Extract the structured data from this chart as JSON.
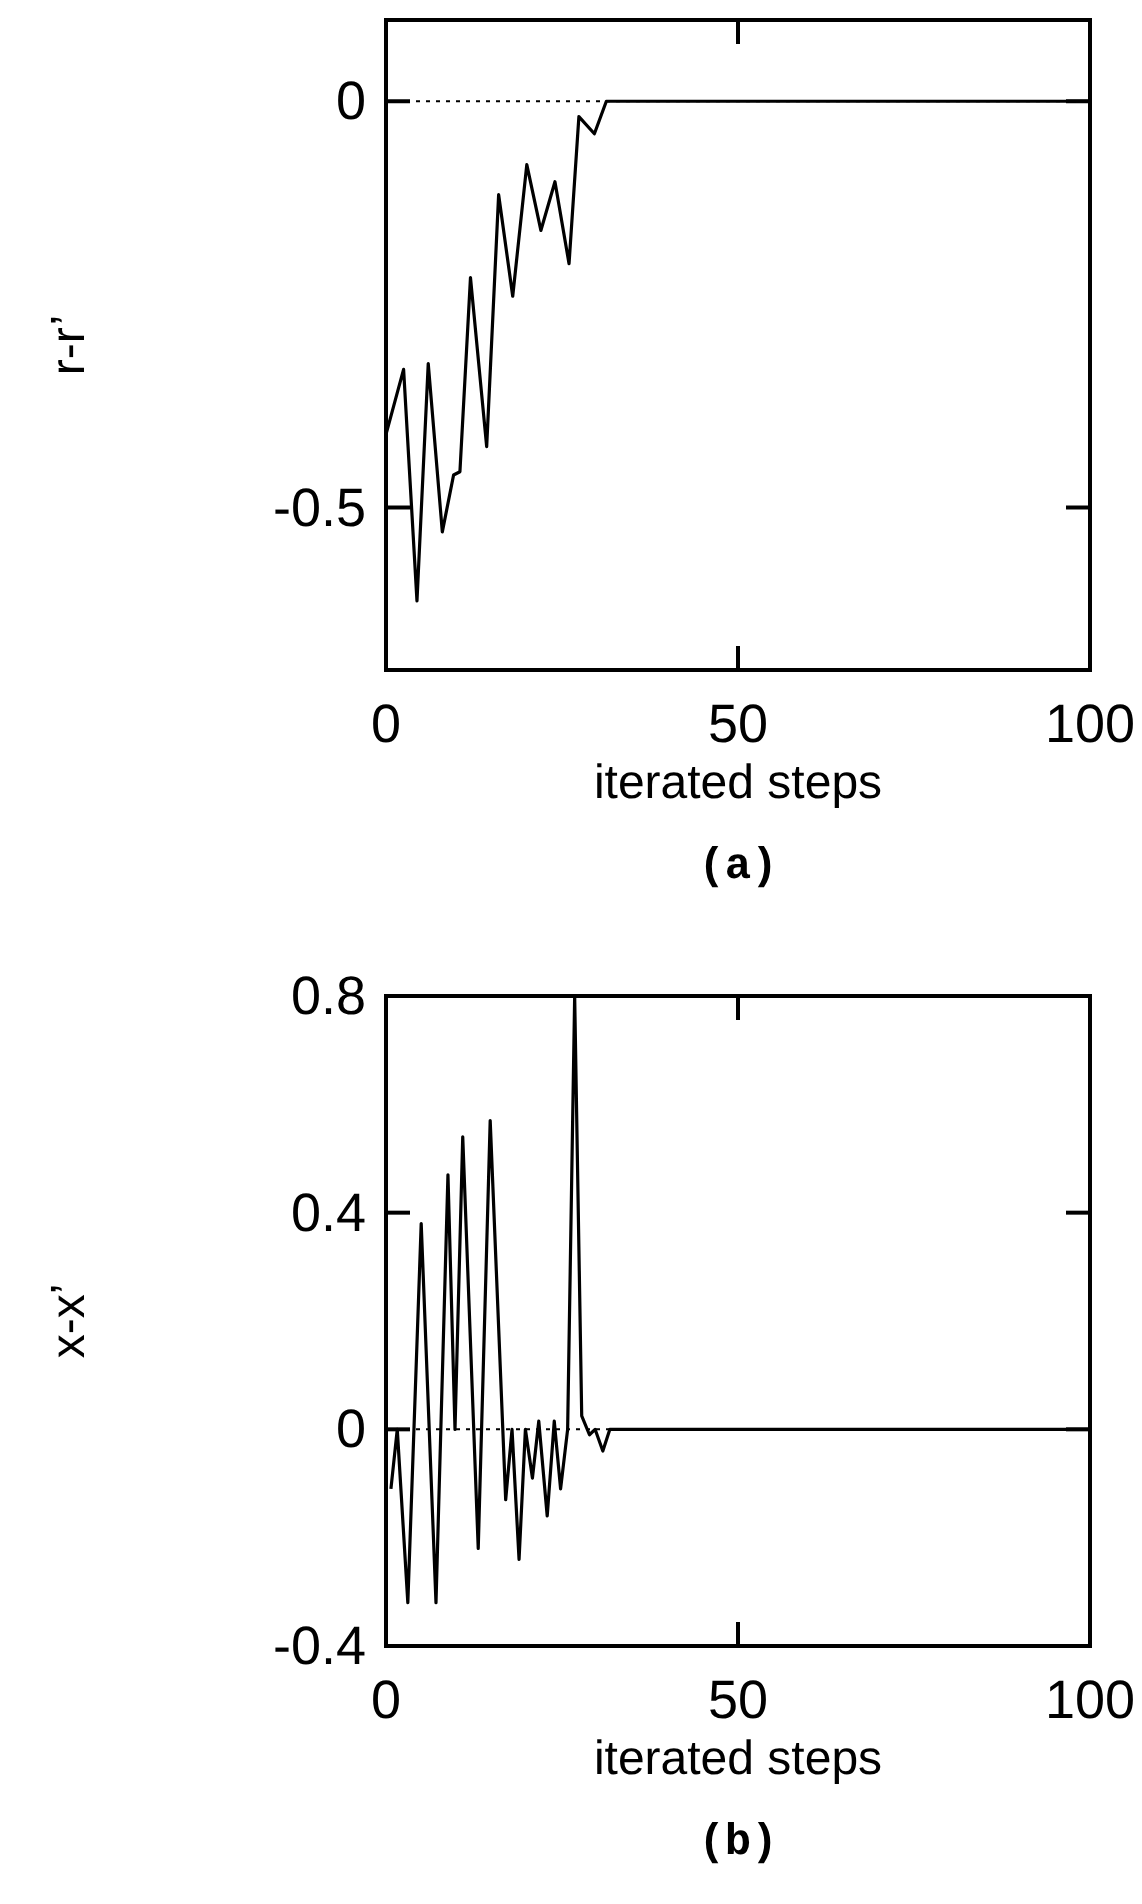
{
  "chart_data": [
    {
      "type": "line",
      "title": "(a)",
      "xlabel": "iterated steps",
      "ylabel": "r-r’",
      "xlim": [
        0,
        100
      ],
      "ylim": [
        -0.7,
        0.1
      ],
      "xticks": [
        0,
        50,
        100
      ],
      "yticks": [
        0,
        -0.5
      ],
      "grid": false,
      "marker": "none",
      "line_style": "solid",
      "ref_lines": [
        {
          "axis": "y",
          "value": 0,
          "line_style": "dotted",
          "color": "#000000"
        }
      ],
      "series": [
        {
          "color": "#000000",
          "x": [
            0,
            2.5,
            4.4,
            6,
            8,
            9.6,
            10.5,
            12,
            14.3,
            16,
            18,
            20,
            22,
            24,
            26,
            27.4,
            29.6,
            31.3,
            100
          ],
          "values": [
            -0.41,
            -0.33,
            -0.615,
            -0.323,
            -0.53,
            -0.46,
            -0.456,
            -0.217,
            -0.425,
            -0.115,
            -0.24,
            -0.078,
            -0.159,
            -0.099,
            -0.2,
            -0.019,
            -0.04,
            0,
            0
          ]
        }
      ]
    },
    {
      "type": "line",
      "title": "(b)",
      "xlabel": "iterated steps",
      "ylabel": "x-x’",
      "xlim": [
        0,
        100
      ],
      "ylim": [
        -0.4,
        0.8
      ],
      "xticks": [
        0,
        50,
        100
      ],
      "yticks": [
        0.8,
        0.4,
        0,
        -0.4
      ],
      "grid": false,
      "marker": "none",
      "line_style": "solid",
      "ref_lines": [
        {
          "axis": "y",
          "value": 0,
          "line_style": "dotted",
          "color": "#000000"
        }
      ],
      "series": [
        {
          "color": "#000000",
          "x": [
            0.7,
            1.6,
            3.1,
            5,
            7.1,
            8.8,
            9.8,
            10.9,
            13.1,
            14.8,
            17,
            17.9,
            18.9,
            19.8,
            20.8,
            21.7,
            22.9,
            23.9,
            24.8,
            25.8,
            26.8,
            27.8,
            28.9,
            29.7,
            30.8,
            31.8,
            100
          ],
          "values": [
            -0.11,
            0,
            -0.32,
            0.38,
            -0.32,
            0.47,
            0,
            0.54,
            -0.22,
            0.57,
            -0.13,
            0,
            -0.24,
            0,
            -0.09,
            0.015,
            -0.16,
            0.015,
            -0.11,
            0,
            0.8,
            0.025,
            -0.01,
            0,
            -0.04,
            0,
            0
          ]
        }
      ]
    }
  ]
}
